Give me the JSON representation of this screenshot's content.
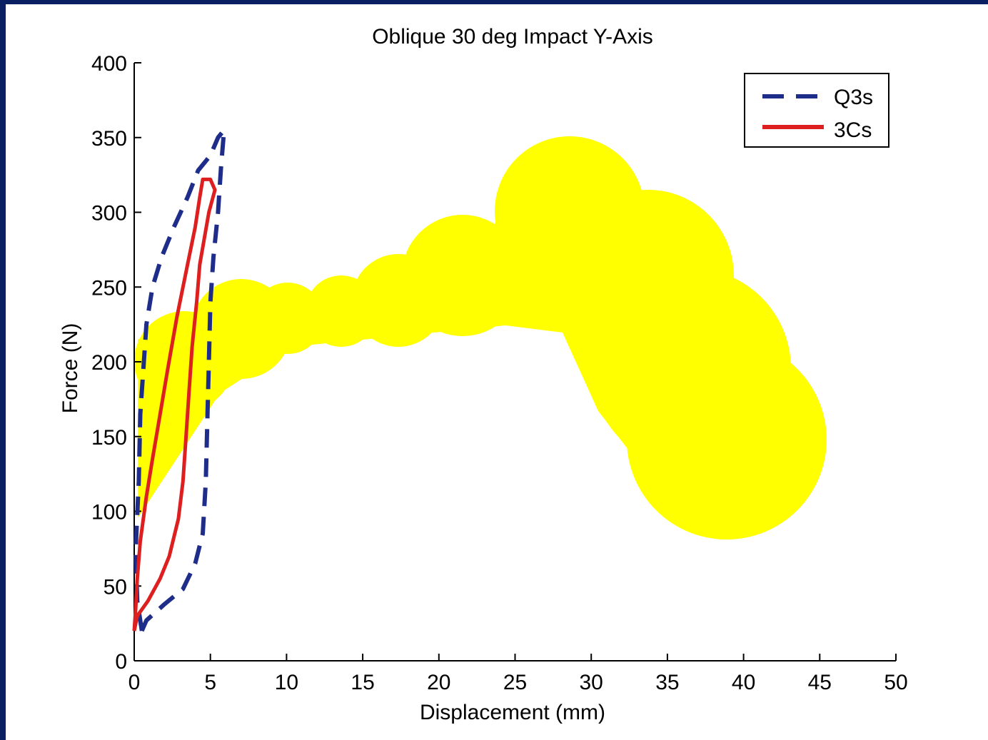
{
  "chart_data": {
    "type": "line",
    "title": "Oblique 30 deg Impact Y-Axis",
    "xlabel": "Displacement (mm)",
    "ylabel": "Force (N)",
    "xlim": [
      0,
      50
    ],
    "ylim": [
      0,
      400
    ],
    "x_ticks": [
      "0",
      "5",
      "10",
      "15",
      "20",
      "25",
      "30",
      "35",
      "40",
      "45",
      "50"
    ],
    "y_ticks": [
      "0",
      "50",
      "100",
      "150",
      "200",
      "250",
      "300",
      "350",
      "400"
    ],
    "grid": false,
    "legend_position": "top-right",
    "series": [
      {
        "name": "Q3s",
        "color": "#1f2d8a",
        "style": "dashed",
        "points": [
          [
            0.5,
            20
          ],
          [
            0.8,
            27
          ],
          [
            2,
            38
          ],
          [
            3.2,
            48
          ],
          [
            4,
            65
          ],
          [
            4.5,
            85
          ],
          [
            4.7,
            120
          ],
          [
            4.8,
            160
          ],
          [
            4.9,
            200
          ],
          [
            5.0,
            240
          ],
          [
            5.2,
            270
          ],
          [
            5.5,
            300
          ],
          [
            5.7,
            330
          ],
          [
            5.9,
            355
          ],
          [
            5.5,
            350
          ],
          [
            5,
            338
          ],
          [
            4.2,
            328
          ],
          [
            3.5,
            310
          ],
          [
            2.6,
            290
          ],
          [
            1.8,
            270
          ],
          [
            1.2,
            250
          ],
          [
            0.8,
            225
          ],
          [
            0.6,
            195
          ],
          [
            0.4,
            165
          ],
          [
            0.3,
            120
          ],
          [
            0.1,
            75
          ],
          [
            0.2,
            40
          ],
          [
            0.5,
            20
          ]
        ]
      },
      {
        "name": "3Cs",
        "color": "#dd1f1f",
        "style": "solid",
        "points": [
          [
            0,
            20
          ],
          [
            0.2,
            30
          ],
          [
            0.9,
            40
          ],
          [
            1.7,
            55
          ],
          [
            2.3,
            70
          ],
          [
            2.9,
            95
          ],
          [
            3.2,
            120
          ],
          [
            3.4,
            150
          ],
          [
            3.6,
            180
          ],
          [
            3.8,
            210
          ],
          [
            4.1,
            240
          ],
          [
            4.3,
            265
          ],
          [
            4.9,
            300
          ],
          [
            5.3,
            315
          ],
          [
            5.0,
            322
          ],
          [
            4.5,
            322
          ],
          [
            4.3,
            310
          ],
          [
            4.0,
            290
          ],
          [
            3.5,
            265
          ],
          [
            2.8,
            230
          ],
          [
            2.2,
            195
          ],
          [
            1.7,
            165
          ],
          [
            1.2,
            135
          ],
          [
            0.8,
            110
          ],
          [
            0.4,
            80
          ],
          [
            0.2,
            55
          ],
          [
            0.1,
            35
          ],
          [
            0,
            20
          ]
        ]
      }
    ]
  }
}
